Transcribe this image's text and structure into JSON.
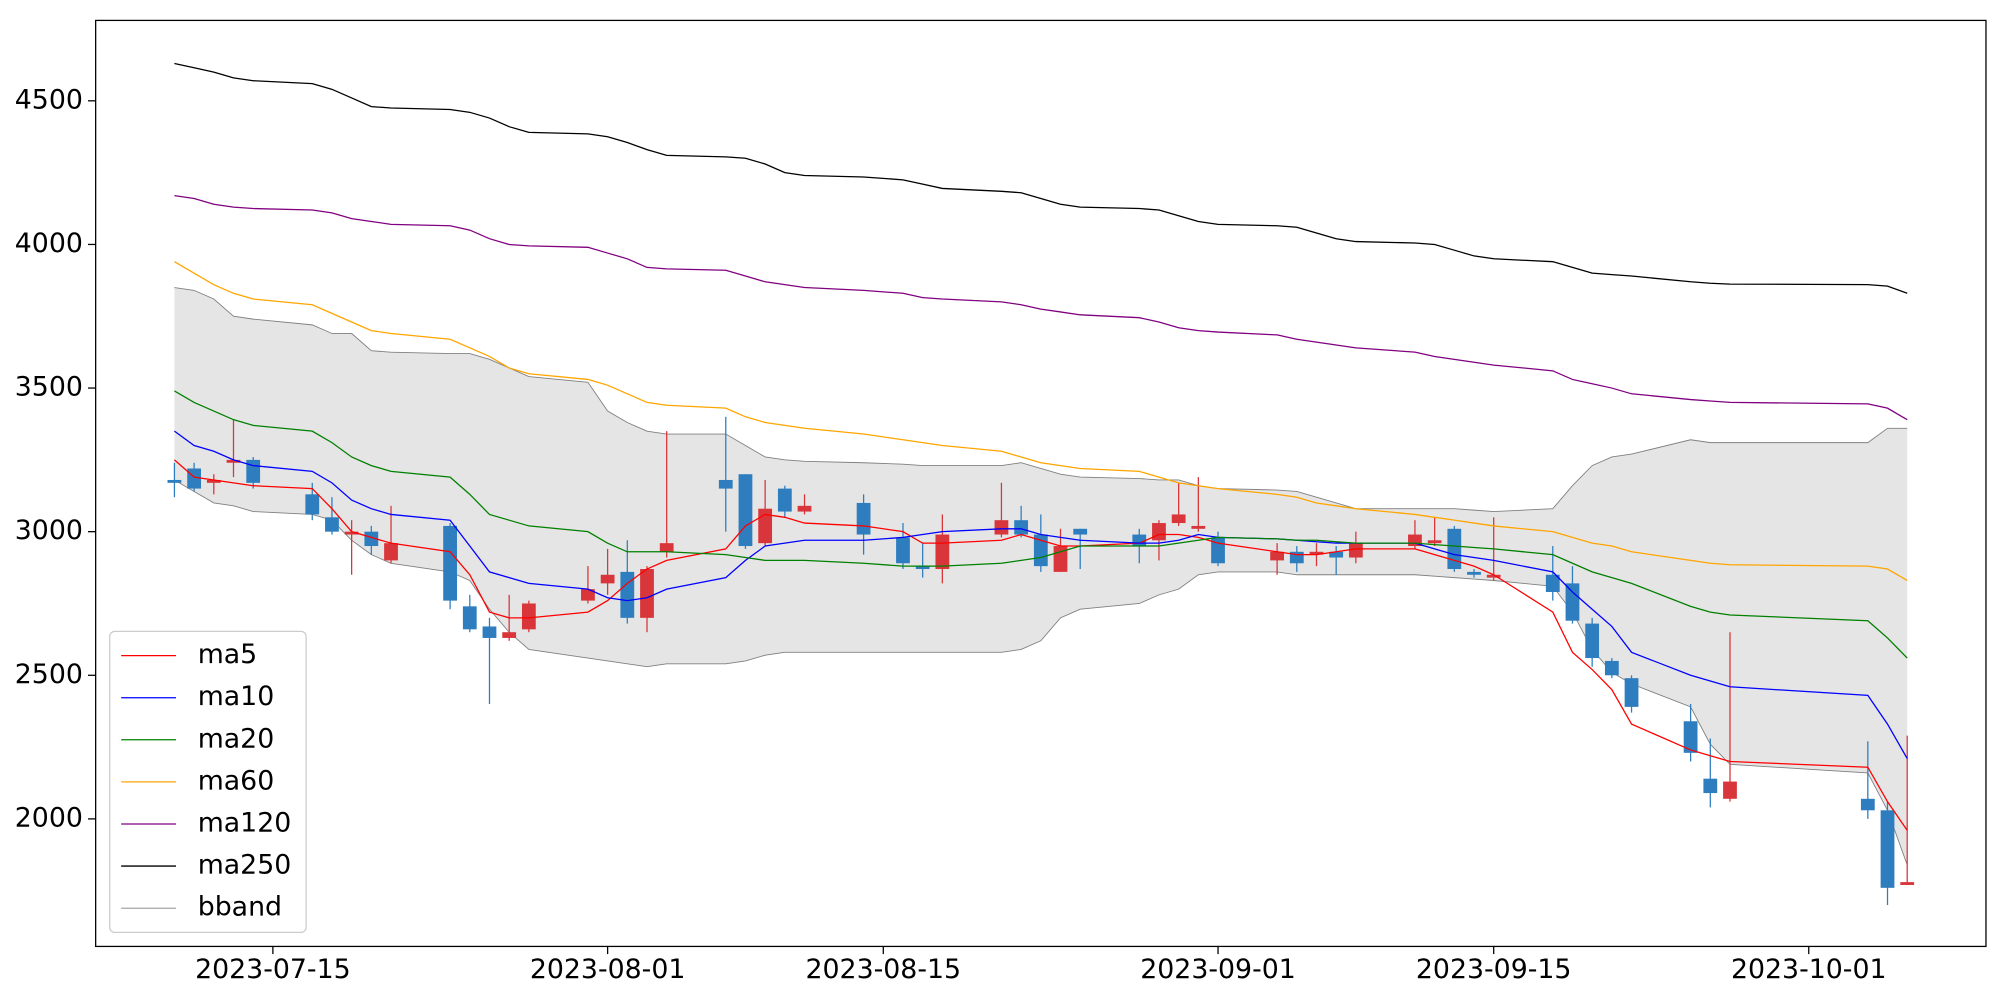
{
  "chart_data": {
    "type": "candlestick",
    "x": [
      "2023-07-10",
      "2023-07-11",
      "2023-07-12",
      "2023-07-13",
      "2023-07-14",
      "2023-07-17",
      "2023-07-18",
      "2023-07-19",
      "2023-07-20",
      "2023-07-21",
      "2023-07-24",
      "2023-07-25",
      "2023-07-26",
      "2023-07-27",
      "2023-07-28",
      "2023-07-31",
      "2023-08-01",
      "2023-08-02",
      "2023-08-03",
      "2023-08-04",
      "2023-08-07",
      "2023-08-08",
      "2023-08-09",
      "2023-08-10",
      "2023-08-11",
      "2023-08-14",
      "2023-08-16",
      "2023-08-17",
      "2023-08-18",
      "2023-08-21",
      "2023-08-22",
      "2023-08-23",
      "2023-08-24",
      "2023-08-25",
      "2023-08-28",
      "2023-08-29",
      "2023-08-30",
      "2023-08-31",
      "2023-09-01",
      "2023-09-04",
      "2023-09-05",
      "2023-09-06",
      "2023-09-07",
      "2023-09-08",
      "2023-09-11",
      "2023-09-12",
      "2023-09-13",
      "2023-09-14",
      "2023-09-15",
      "2023-09-18",
      "2023-09-19",
      "2023-09-20",
      "2023-09-21",
      "2023-09-22",
      "2023-09-25",
      "2023-09-26",
      "2023-09-27",
      "2023-10-04",
      "2023-10-05",
      "2023-10-06"
    ],
    "candles": {
      "up_color": "#d8363a",
      "down_color": "#2e7ebf",
      "open": [
        3180,
        3220,
        3170,
        3240,
        3250,
        3130,
        3050,
        2990,
        3000,
        2900,
        3020,
        2740,
        2670,
        2630,
        2660,
        2760,
        2820,
        2860,
        2700,
        2930,
        3180,
        3200,
        2960,
        3150,
        3070,
        3100,
        2980,
        2880,
        2870,
        2990,
        3040,
        2990,
        2860,
        3010,
        2990,
        2970,
        3030,
        3010,
        2980,
        2900,
        2930,
        2920,
        2930,
        2910,
        2950,
        2960,
        3010,
        2860,
        2840,
        2850,
        2820,
        2680,
        2550,
        2490,
        2340,
        2140,
        2070,
        2070,
        2030,
        1770
      ],
      "high": [
        3240,
        3240,
        3200,
        3390,
        3260,
        3170,
        3120,
        3040,
        3020,
        3090,
        3030,
        2780,
        2700,
        2780,
        2760,
        2880,
        2940,
        2970,
        2880,
        3350,
        3400,
        3200,
        3180,
        3160,
        3130,
        3130,
        3030,
        2960,
        3060,
        3170,
        3090,
        3060,
        3010,
        3010,
        3010,
        3040,
        3170,
        3190,
        3000,
        2960,
        2950,
        2960,
        2950,
        3000,
        3040,
        3050,
        3020,
        2870,
        3050,
        2950,
        2880,
        2700,
        2560,
        2500,
        2400,
        2280,
        2650,
        2270,
        2060,
        2290
      ],
      "low": [
        3120,
        3140,
        3130,
        3190,
        3150,
        3040,
        2990,
        2850,
        2920,
        2890,
        2730,
        2650,
        2400,
        2620,
        2650,
        2750,
        2780,
        2680,
        2650,
        2910,
        3000,
        2940,
        2950,
        3050,
        3060,
        2920,
        2870,
        2840,
        2820,
        2980,
        2980,
        2860,
        2860,
        2870,
        2890,
        2900,
        3020,
        3000,
        2880,
        2850,
        2860,
        2880,
        2850,
        2890,
        2940,
        2950,
        2860,
        2840,
        2830,
        2760,
        2680,
        2530,
        2490,
        2370,
        2200,
        2040,
        2060,
        2000,
        1700,
        1770
      ],
      "close": [
        3170,
        3150,
        3180,
        3250,
        3170,
        3060,
        3000,
        3000,
        2950,
        2960,
        2760,
        2660,
        2630,
        2650,
        2750,
        2800,
        2850,
        2700,
        2870,
        2960,
        3150,
        2950,
        3080,
        3070,
        3090,
        2990,
        2890,
        2870,
        2990,
        3040,
        2990,
        2880,
        2950,
        2990,
        2950,
        3030,
        3060,
        3020,
        2890,
        2930,
        2890,
        2930,
        2910,
        2960,
        2990,
        2970,
        2870,
        2850,
        2850,
        2790,
        2690,
        2560,
        2500,
        2390,
        2230,
        2090,
        2130,
        2030,
        1760,
        1780
      ]
    },
    "series": [
      {
        "name": "ma5",
        "color": "#ff0000",
        "values": [
          3250,
          3190,
          3180,
          3170,
          3160,
          3150,
          3080,
          3000,
          2980,
          2960,
          2930,
          2850,
          2720,
          2700,
          2700,
          2720,
          2760,
          2820,
          2870,
          2900,
          2940,
          3020,
          3060,
          3050,
          3030,
          3020,
          3000,
          2960,
          2960,
          2970,
          2990,
          2970,
          2950,
          2950,
          2960,
          2990,
          2990,
          2980,
          2960,
          2930,
          2920,
          2920,
          2930,
          2940,
          2940,
          2920,
          2900,
          2880,
          2850,
          2720,
          2580,
          2520,
          2450,
          2330,
          2240,
          2220,
          2200,
          2180,
          2060,
          1960
        ]
      },
      {
        "name": "ma10",
        "color": "#0000ff",
        "values": [
          3350,
          3300,
          3280,
          3250,
          3230,
          3210,
          3170,
          3110,
          3080,
          3060,
          3040,
          2950,
          2860,
          2840,
          2820,
          2800,
          2770,
          2760,
          2770,
          2800,
          2840,
          2900,
          2950,
          2960,
          2970,
          2970,
          2980,
          2990,
          3000,
          3010,
          3010,
          2990,
          2980,
          2970,
          2960,
          2960,
          2970,
          2990,
          2980,
          2975,
          2970,
          2965,
          2960,
          2960,
          2960,
          2940,
          2920,
          2910,
          2900,
          2860,
          2790,
          2730,
          2670,
          2580,
          2500,
          2480,
          2460,
          2430,
          2330,
          2210
        ]
      },
      {
        "name": "ma20",
        "color": "#008000",
        "values": [
          3490,
          3450,
          3420,
          3390,
          3370,
          3350,
          3310,
          3260,
          3230,
          3210,
          3190,
          3130,
          3060,
          3040,
          3020,
          3000,
          2960,
          2930,
          2930,
          2930,
          2920,
          2910,
          2900,
          2900,
          2900,
          2890,
          2880,
          2880,
          2880,
          2890,
          2900,
          2910,
          2930,
          2950,
          2950,
          2950,
          2960,
          2970,
          2980,
          2975,
          2970,
          2970,
          2965,
          2960,
          2960,
          2955,
          2950,
          2945,
          2940,
          2920,
          2890,
          2860,
          2840,
          2820,
          2740,
          2720,
          2710,
          2690,
          2630,
          2560
        ]
      },
      {
        "name": "ma60",
        "color": "#ffa500",
        "values": [
          3940,
          3900,
          3860,
          3830,
          3810,
          3790,
          3760,
          3730,
          3700,
          3690,
          3670,
          3640,
          3610,
          3570,
          3550,
          3530,
          3510,
          3480,
          3450,
          3440,
          3430,
          3400,
          3380,
          3370,
          3360,
          3340,
          3320,
          3310,
          3300,
          3280,
          3260,
          3240,
          3230,
          3220,
          3210,
          3190,
          3170,
          3160,
          3150,
          3130,
          3120,
          3100,
          3090,
          3080,
          3060,
          3050,
          3040,
          3030,
          3020,
          3000,
          2980,
          2960,
          2950,
          2930,
          2900,
          2890,
          2885,
          2880,
          2870,
          2830
        ]
      },
      {
        "name": "ma120",
        "color": "#800080",
        "values": [
          4170,
          4160,
          4140,
          4130,
          4125,
          4120,
          4110,
          4090,
          4080,
          4070,
          4065,
          4050,
          4020,
          4000,
          3995,
          3990,
          3970,
          3950,
          3920,
          3915,
          3910,
          3890,
          3870,
          3860,
          3850,
          3840,
          3830,
          3815,
          3810,
          3800,
          3790,
          3775,
          3765,
          3755,
          3745,
          3730,
          3710,
          3700,
          3695,
          3685,
          3670,
          3660,
          3650,
          3640,
          3625,
          3610,
          3600,
          3590,
          3580,
          3560,
          3530,
          3515,
          3500,
          3480,
          3460,
          3455,
          3450,
          3445,
          3430,
          3390
        ]
      },
      {
        "name": "ma250",
        "color": "#000000",
        "values": [
          4630,
          4615,
          4600,
          4580,
          4570,
          4560,
          4540,
          4510,
          4480,
          4475,
          4470,
          4460,
          4440,
          4410,
          4390,
          4385,
          4375,
          4355,
          4330,
          4310,
          4305,
          4300,
          4280,
          4250,
          4240,
          4235,
          4225,
          4210,
          4195,
          4185,
          4180,
          4160,
          4140,
          4130,
          4125,
          4120,
          4100,
          4080,
          4070,
          4065,
          4060,
          4040,
          4020,
          4010,
          4005,
          4000,
          3980,
          3960,
          3950,
          3940,
          3920,
          3900,
          3895,
          3890,
          3870,
          3865,
          3862,
          3860,
          3855,
          3830
        ]
      }
    ],
    "bband": {
      "name": "bband",
      "color": "#808080",
      "fill": "#e5e5e5",
      "upper": [
        3850,
        3840,
        3810,
        3750,
        3740,
        3720,
        3690,
        3690,
        3630,
        3625,
        3620,
        3620,
        3600,
        3570,
        3540,
        3520,
        3420,
        3380,
        3350,
        3340,
        3340,
        3300,
        3260,
        3250,
        3245,
        3240,
        3235,
        3230,
        3230,
        3230,
        3240,
        3220,
        3200,
        3190,
        3185,
        3180,
        3180,
        3160,
        3150,
        3145,
        3140,
        3120,
        3100,
        3080,
        3080,
        3080,
        3080,
        3075,
        3070,
        3080,
        3160,
        3230,
        3260,
        3270,
        3320,
        3310,
        3310,
        3310,
        3360,
        3360
      ],
      "lower": [
        3180,
        3140,
        3100,
        3090,
        3070,
        3060,
        3040,
        2970,
        2920,
        2890,
        2860,
        2830,
        2730,
        2650,
        2590,
        2560,
        2550,
        2540,
        2530,
        2540,
        2540,
        2550,
        2570,
        2580,
        2580,
        2580,
        2580,
        2580,
        2580,
        2580,
        2590,
        2620,
        2700,
        2730,
        2750,
        2780,
        2800,
        2850,
        2860,
        2860,
        2850,
        2850,
        2850,
        2850,
        2850,
        2845,
        2840,
        2835,
        2830,
        2810,
        2720,
        2590,
        2510,
        2470,
        2390,
        2260,
        2190,
        2160,
        2030,
        1840
      ]
    },
    "xlim": [
      "2023-07-06",
      "2023-10-10"
    ],
    "xticks": [
      "2023-07-15",
      "2023-08-01",
      "2023-08-15",
      "2023-09-01",
      "2023-09-15",
      "2023-10-01"
    ],
    "ylim": [
      1556,
      4780
    ],
    "yticks": [
      2000,
      2500,
      3000,
      3500,
      4000,
      4500
    ],
    "grid": false,
    "legend": "lower left"
  }
}
